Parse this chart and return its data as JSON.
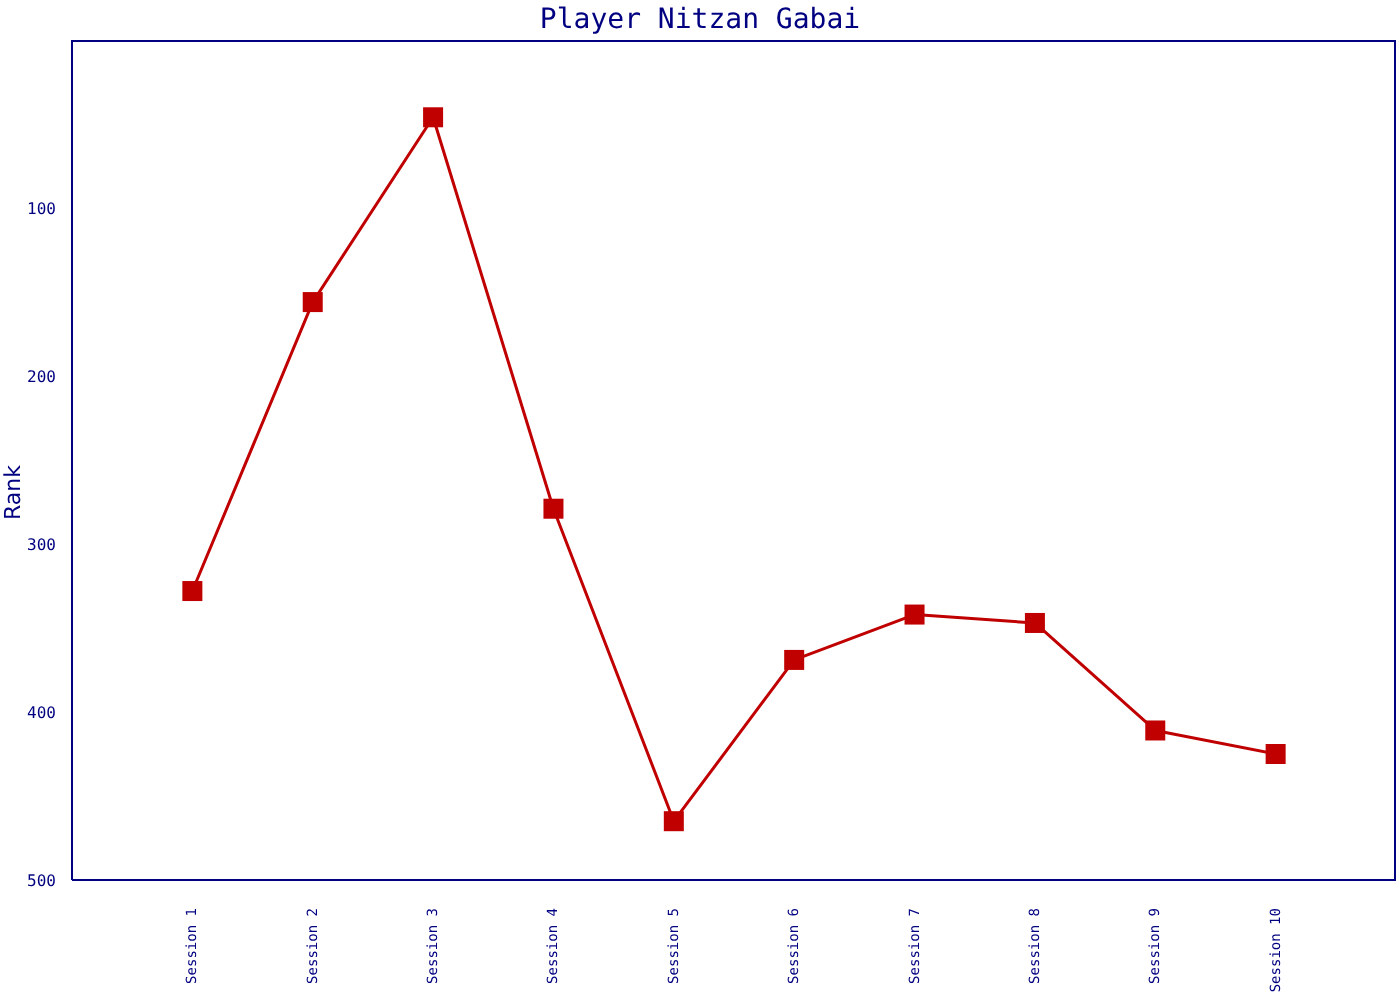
{
  "chart_data": {
    "type": "line",
    "title": "Player Nitzan Gabai",
    "ylabel": "Rank",
    "categories": [
      "Session 1",
      "Session 2",
      "Session 3",
      "Session 4",
      "Session 5",
      "Session 6",
      "Session 7",
      "Session 8",
      "Session 9",
      "Session 10"
    ],
    "series": [
      {
        "color": "#c00000",
        "values": [
          328,
          156,
          46,
          279,
          465,
          369,
          342,
          347,
          411,
          425
        ]
      }
    ],
    "ylim": [
      500,
      0
    ],
    "yticks": [
      100,
      200,
      300,
      400,
      500
    ],
    "grid": false,
    "legend": false,
    "marker": "square",
    "line_style": "solid"
  }
}
